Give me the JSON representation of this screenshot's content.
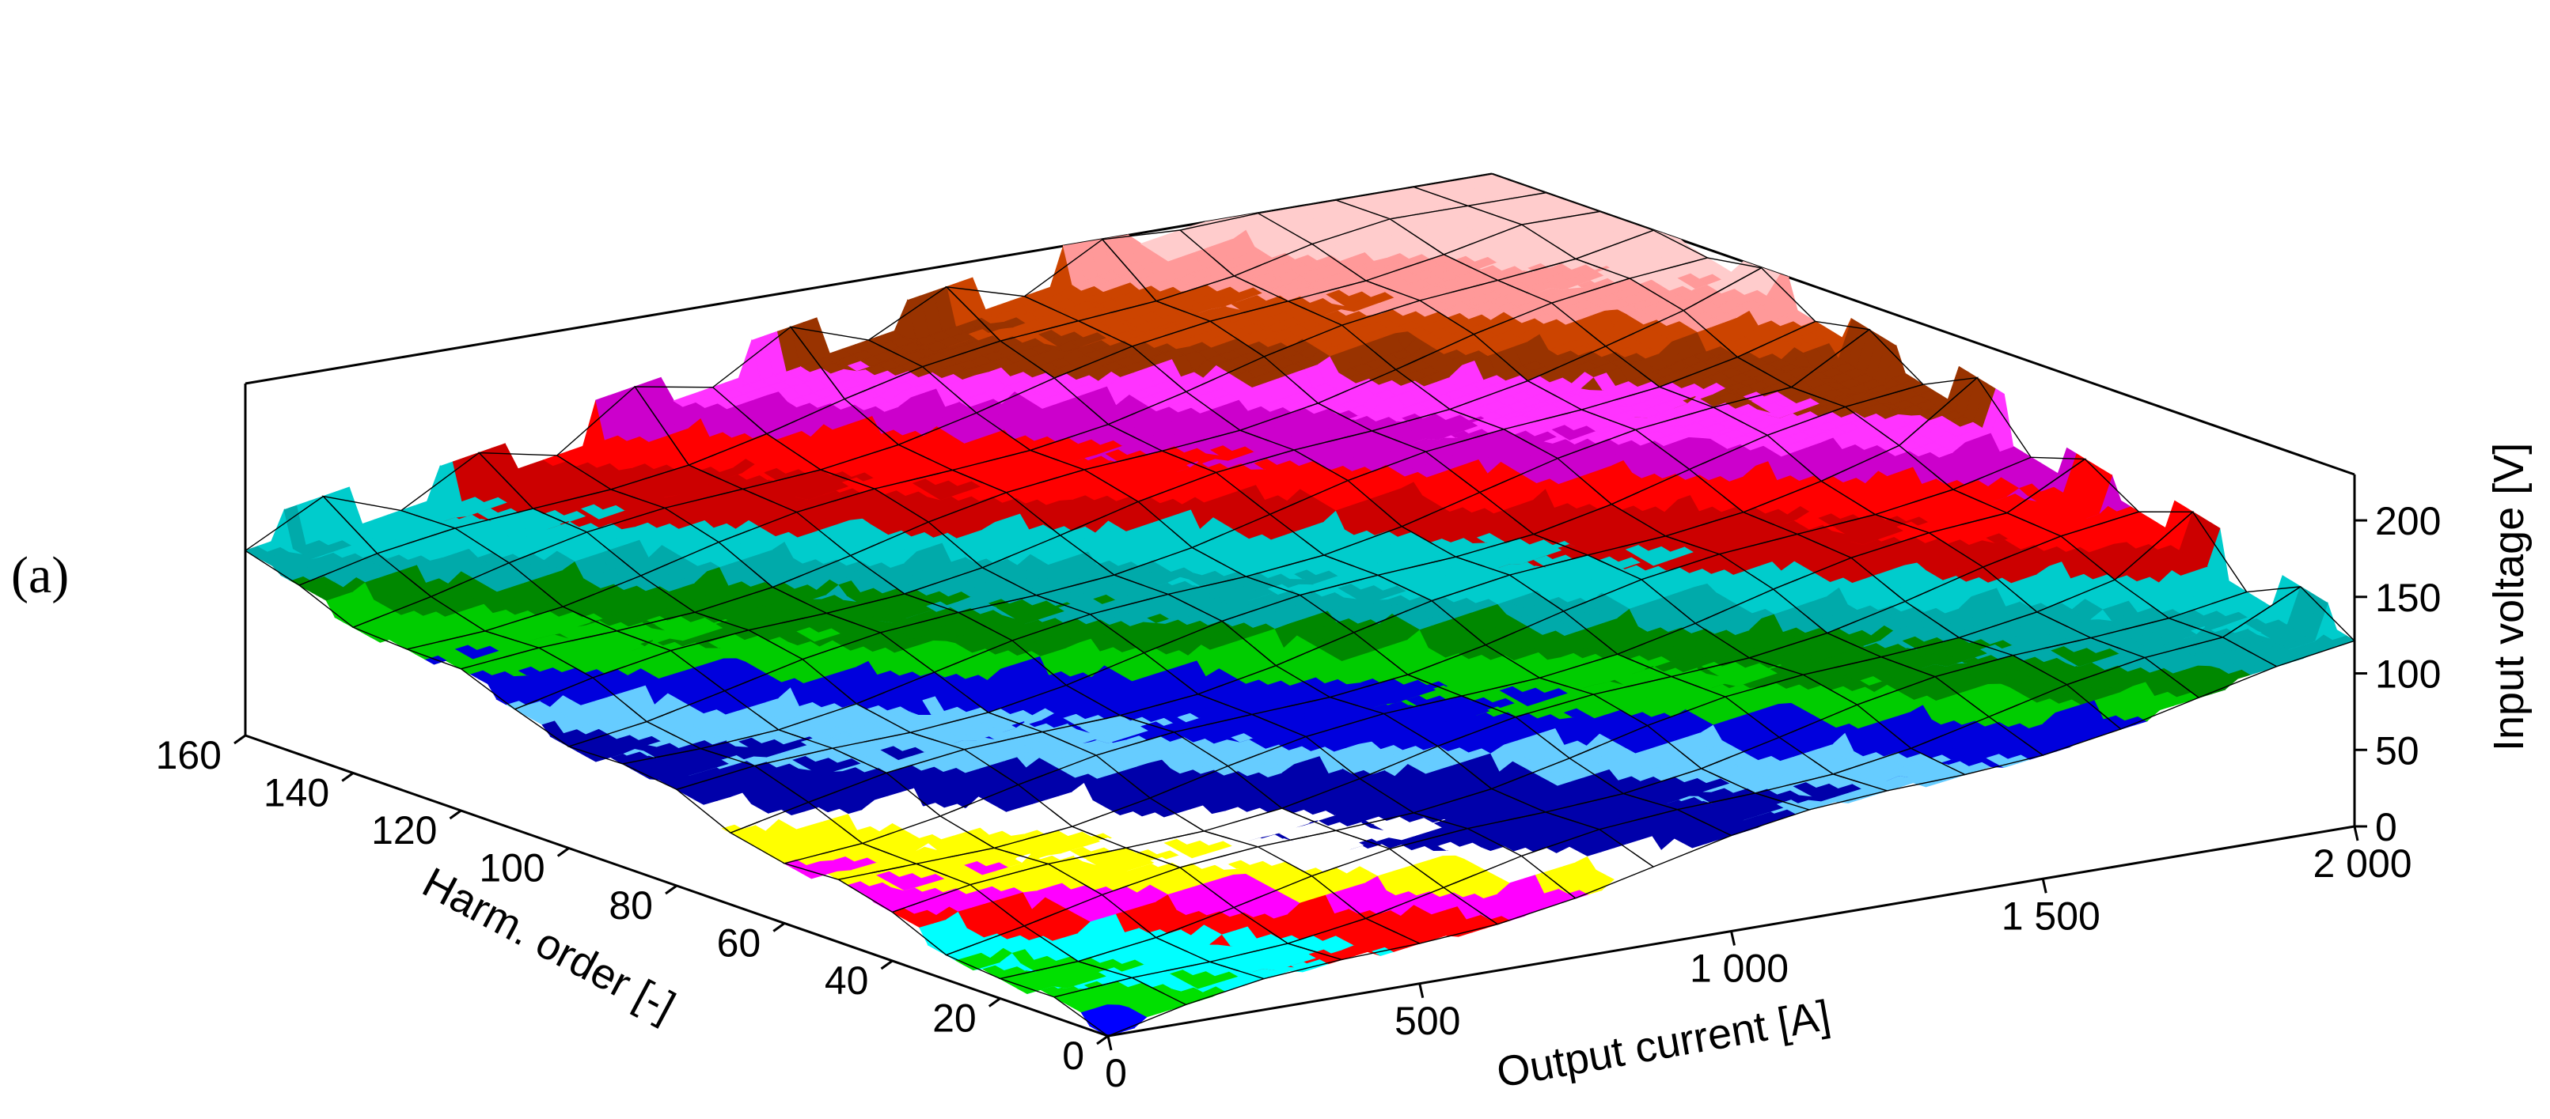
{
  "panel_label": "(a)",
  "chart_data": {
    "type": "surface3d",
    "title": "",
    "xlabel": "Harm. order [-]",
    "ylabel": "Output current [A]",
    "zlabel": "Input voltage [V]",
    "x_ticks": [
      "0",
      "20",
      "40",
      "60",
      "80",
      "100",
      "120",
      "140",
      "160"
    ],
    "y_ticks": [
      "0",
      "500",
      "1 000",
      "1 500",
      "2 000"
    ],
    "z_ticks": [
      "0",
      "50",
      "100",
      "150",
      "200"
    ],
    "xlim": [
      0,
      160
    ],
    "ylim": [
      0,
      2000
    ],
    "zlim": [
      0,
      230
    ],
    "x": [
      0,
      10,
      20,
      30,
      40,
      50,
      60,
      70,
      80,
      90,
      100,
      110,
      120,
      130,
      140,
      150,
      160
    ],
    "y": [
      0,
      125,
      250,
      375,
      500,
      625,
      750,
      875,
      1000,
      1125,
      1250,
      1375,
      1500,
      1625,
      1750,
      1875,
      2000
    ],
    "z_description": "Input voltage (0 at harmonic order 0 / output current 0) rising approximately linearly toward ~230 V at harmonic order 160 / output current 2000; ridges along the far edge reach ~230 V.",
    "color_bands": [
      {
        "from": 0,
        "to": 8,
        "color": "#0000ff"
      },
      {
        "from": 8,
        "to": 16,
        "color": "#00e000"
      },
      {
        "from": 16,
        "to": 24,
        "color": "#00ffff"
      },
      {
        "from": 24,
        "to": 32,
        "color": "#ff0000"
      },
      {
        "from": 32,
        "to": 40,
        "color": "#ff00ff"
      },
      {
        "from": 40,
        "to": 48,
        "color": "#ffff00"
      },
      {
        "from": 48,
        "to": 56,
        "color": "#ffffff"
      },
      {
        "from": 56,
        "to": 70,
        "color": "#0000aa"
      },
      {
        "from": 70,
        "to": 80,
        "color": "#66ccff"
      },
      {
        "from": 80,
        "to": 92,
        "color": "#0000dd"
      },
      {
        "from": 92,
        "to": 102,
        "color": "#00cc00"
      },
      {
        "from": 102,
        "to": 112,
        "color": "#008800"
      },
      {
        "from": 112,
        "to": 122,
        "color": "#00aaaa"
      },
      {
        "from": 122,
        "to": 134,
        "color": "#00cccc"
      },
      {
        "from": 134,
        "to": 146,
        "color": "#cc0000"
      },
      {
        "from": 146,
        "to": 158,
        "color": "#ff0000"
      },
      {
        "from": 158,
        "to": 170,
        "color": "#cc00cc"
      },
      {
        "from": 170,
        "to": 182,
        "color": "#ff33ff"
      },
      {
        "from": 182,
        "to": 194,
        "color": "#993300"
      },
      {
        "from": 194,
        "to": 206,
        "color": "#cc4400"
      },
      {
        "from": 206,
        "to": 218,
        "color": "#ff9999"
      },
      {
        "from": 218,
        "to": 230,
        "color": "#ffcccc"
      }
    ],
    "grid": true,
    "legend": "none"
  }
}
